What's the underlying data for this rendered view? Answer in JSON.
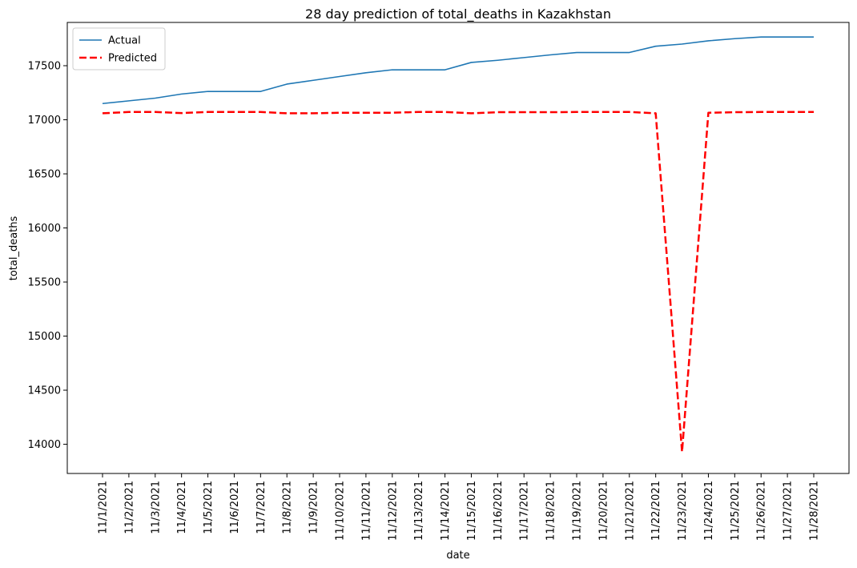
{
  "chart_data": {
    "type": "line",
    "title": "28 day prediction of total_deaths in Kazakhstan",
    "xlabel": "date",
    "ylabel": "total_deaths",
    "categories": [
      "11/1/2021",
      "11/2/2021",
      "11/3/2021",
      "11/4/2021",
      "11/5/2021",
      "11/6/2021",
      "11/7/2021",
      "11/8/2021",
      "11/9/2021",
      "11/10/2021",
      "11/11/2021",
      "11/12/2021",
      "11/13/2021",
      "11/14/2021",
      "11/15/2021",
      "11/16/2021",
      "11/17/2021",
      "11/18/2021",
      "11/19/2021",
      "11/20/2021",
      "11/21/2021",
      "11/22/2021",
      "11/23/2021",
      "11/24/2021",
      "11/25/2021",
      "11/26/2021",
      "11/27/2021",
      "11/28/2021"
    ],
    "yticks": [
      14000,
      14500,
      15000,
      15500,
      16000,
      16500,
      17000,
      17500
    ],
    "ylim": [
      13730,
      17900
    ],
    "grid": false,
    "legend_position": "top-left",
    "series": [
      {
        "name": "Actual",
        "color": "#1f77b4",
        "style": "solid",
        "values": [
          17150,
          17175,
          17200,
          17238,
          17262,
          17262,
          17262,
          17330,
          17365,
          17400,
          17435,
          17462,
          17462,
          17462,
          17530,
          17550,
          17575,
          17600,
          17622,
          17622,
          17622,
          17680,
          17700,
          17730,
          17750,
          17765,
          17765,
          17765
        ]
      },
      {
        "name": "Predicted",
        "color": "#ff0000",
        "style": "dashed",
        "values": [
          17060,
          17072,
          17072,
          17062,
          17072,
          17072,
          17072,
          17060,
          17060,
          17065,
          17065,
          17065,
          17072,
          17072,
          17060,
          17070,
          17070,
          17070,
          17072,
          17072,
          17072,
          17060,
          13930,
          17065,
          17070,
          17072,
          17072,
          17072
        ]
      }
    ]
  }
}
